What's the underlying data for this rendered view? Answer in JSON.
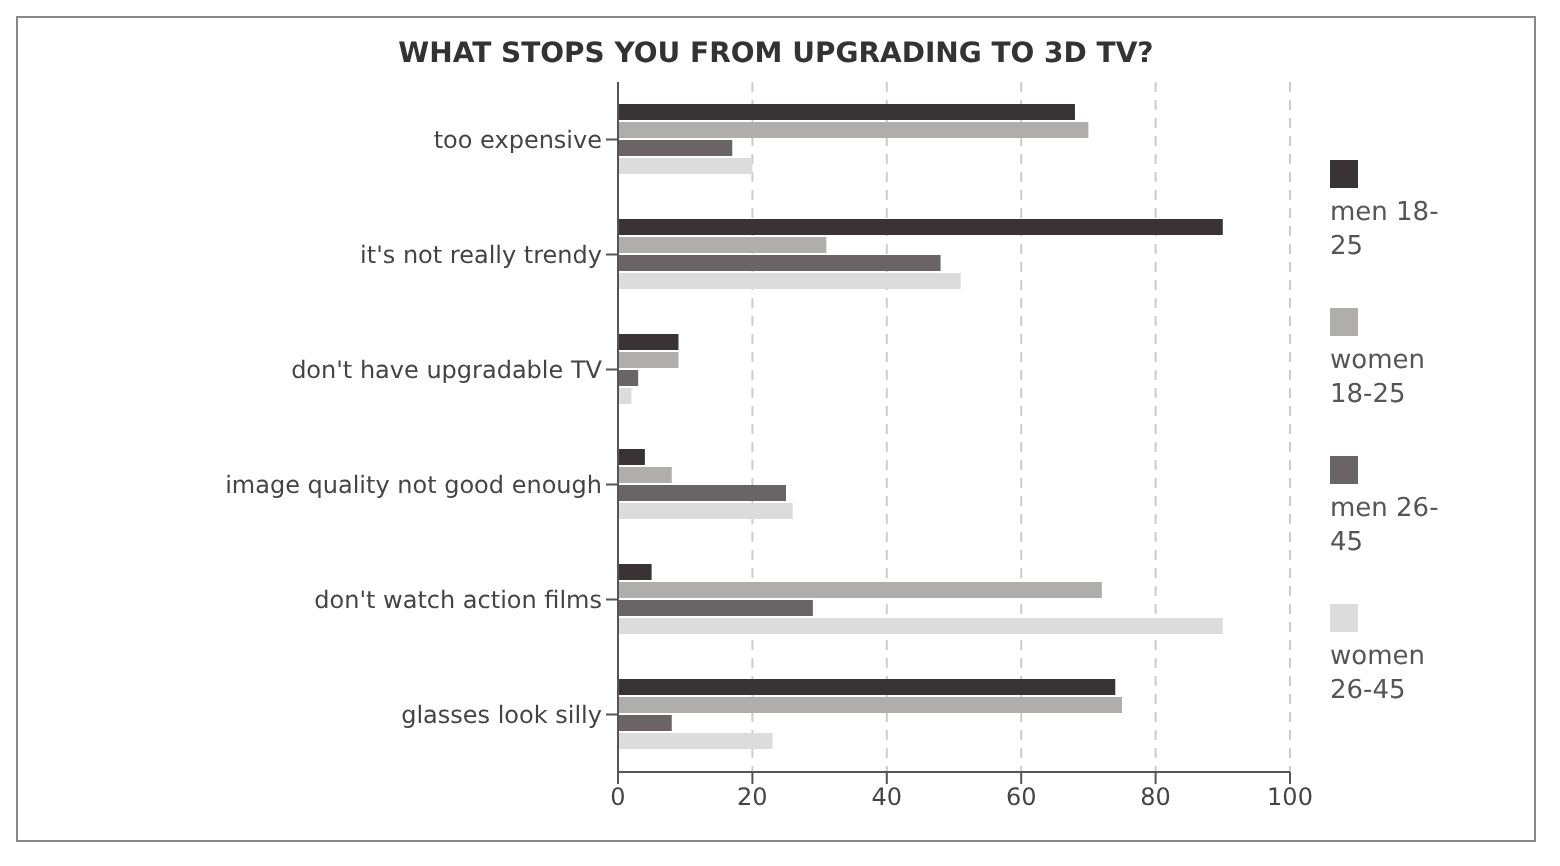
{
  "chart_data": {
    "type": "bar",
    "orientation": "horizontal",
    "title": "WHAT STOPS YOU FROM UPGRADING TO 3D TV?",
    "categories": [
      "too expensive",
      "it's not really trendy",
      "don't have upgradable TV",
      "image quality not good enough",
      "don't watch action films",
      "glasses look silly"
    ],
    "series": [
      {
        "name": "men 18-25",
        "color": "#3a3335",
        "values": [
          68,
          90,
          9,
          4,
          5,
          74
        ]
      },
      {
        "name": "women 18-25",
        "color": "#b0adad",
        "values": [
          70,
          31,
          9,
          8,
          72,
          75
        ]
      },
      {
        "name": "men 26-45",
        "color": "#6b6466",
        "values": [
          17,
          48,
          3,
          25,
          29,
          8
        ]
      },
      {
        "name": "women 26-45",
        "color": "#dcdcdc",
        "values": [
          20,
          51,
          2,
          26,
          90,
          23
        ]
      }
    ],
    "xlim": [
      0,
      100
    ],
    "xticks": [
      0,
      20,
      40,
      60,
      80,
      100
    ],
    "grid": "x",
    "legend": "right"
  }
}
